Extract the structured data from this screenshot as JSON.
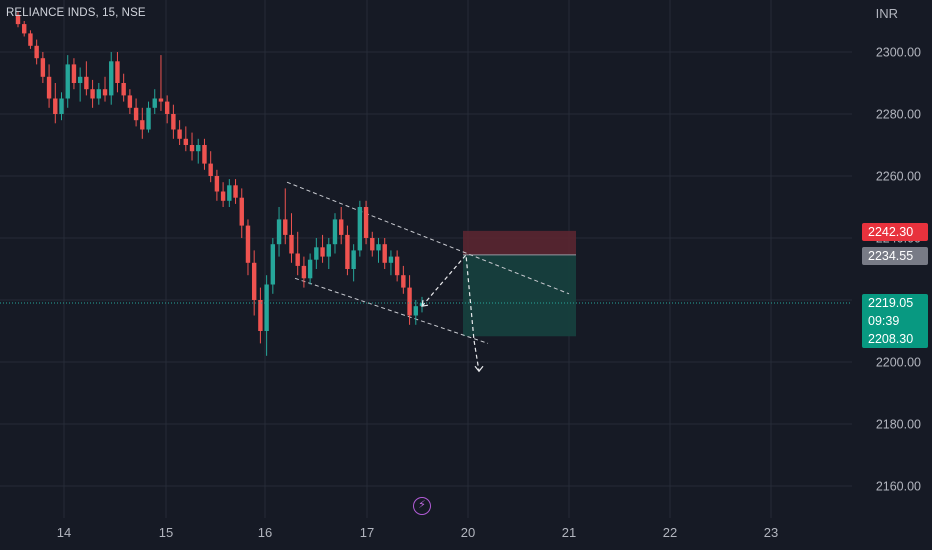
{
  "header": {
    "symbol": "RELIANCE INDS, 15, NSE",
    "currency": "INR"
  },
  "colors": {
    "up": "#26a69a",
    "down": "#ef5350",
    "background": "#161a25",
    "stop_zone": "#5a2631",
    "target_zone": "#163f3d",
    "grid": "#262b38"
  },
  "icons": {
    "bolt": "lightning-icon"
  },
  "price_tags": {
    "stop": "2242.30",
    "entry": "2234.55",
    "last": "2219.05",
    "countdown": "09:39",
    "target": "2208.30"
  },
  "chart_data": {
    "type": "candlestick",
    "title": "",
    "x_ticks": [
      "14",
      "15",
      "16",
      "17",
      "20",
      "21",
      "22",
      "23"
    ],
    "y_ticks": [
      "2300.00",
      "2280.00",
      "2260.00",
      "2240.00",
      "2220.00",
      "2200.00",
      "2180.00",
      "2160.00"
    ],
    "ylim": [
      2150,
      2316
    ],
    "candles": [
      [
        2312,
        2313,
        2308,
        2309
      ],
      [
        2309,
        2310,
        2305,
        2306
      ],
      [
        2306,
        2307,
        2301,
        2302
      ],
      [
        2302,
        2304,
        2296,
        2298
      ],
      [
        2298,
        2300,
        2290,
        2292
      ],
      [
        2292,
        2296,
        2282,
        2285
      ],
      [
        2285,
        2290,
        2277,
        2280
      ],
      [
        2280,
        2287,
        2278,
        2285
      ],
      [
        2285,
        2299,
        2282,
        2296
      ],
      [
        2296,
        2298,
        2288,
        2290
      ],
      [
        2290,
        2295,
        2284,
        2292
      ],
      [
        2292,
        2297,
        2286,
        2288
      ],
      [
        2288,
        2291,
        2282,
        2285
      ],
      [
        2285,
        2290,
        2283,
        2288
      ],
      [
        2288,
        2292,
        2284,
        2286
      ],
      [
        2286,
        2300,
        2283,
        2297
      ],
      [
        2297,
        2300,
        2287,
        2290
      ],
      [
        2290,
        2293,
        2284,
        2286
      ],
      [
        2286,
        2288,
        2280,
        2282
      ],
      [
        2282,
        2285,
        2276,
        2278
      ],
      [
        2278,
        2282,
        2272,
        2275
      ],
      [
        2275,
        2284,
        2274,
        2282
      ],
      [
        2282,
        2288,
        2280,
        2285
      ],
      [
        2285,
        2299,
        2281,
        2284
      ],
      [
        2284,
        2286,
        2277,
        2280
      ],
      [
        2280,
        2283,
        2272,
        2275
      ],
      [
        2275,
        2278,
        2270,
        2272
      ],
      [
        2272,
        2276,
        2268,
        2270
      ],
      [
        2270,
        2274,
        2265,
        2268
      ],
      [
        2268,
        2272,
        2264,
        2270
      ],
      [
        2270,
        2272,
        2262,
        2264
      ],
      [
        2264,
        2268,
        2258,
        2260
      ],
      [
        2260,
        2262,
        2252,
        2255
      ],
      [
        2255,
        2258,
        2250,
        2252
      ],
      [
        2252,
        2259,
        2250,
        2257
      ],
      [
        2257,
        2259,
        2251,
        2253
      ],
      [
        2253,
        2256,
        2240,
        2244
      ],
      [
        2244,
        2246,
        2228,
        2232
      ],
      [
        2232,
        2236,
        2215,
        2220
      ],
      [
        2220,
        2224,
        2206,
        2210
      ],
      [
        2210,
        2228,
        2202,
        2225
      ],
      [
        2225,
        2240,
        2222,
        2238
      ],
      [
        2238,
        2250,
        2234,
        2246
      ],
      [
        2246,
        2256,
        2238,
        2241
      ],
      [
        2241,
        2248,
        2232,
        2235
      ],
      [
        2235,
        2242,
        2228,
        2231
      ],
      [
        2231,
        2234,
        2224,
        2227
      ],
      [
        2227,
        2235,
        2225,
        2233
      ],
      [
        2233,
        2240,
        2230,
        2237
      ],
      [
        2237,
        2241,
        2232,
        2234
      ],
      [
        2234,
        2240,
        2230,
        2238
      ],
      [
        2238,
        2248,
        2235,
        2246
      ],
      [
        2246,
        2250,
        2238,
        2241
      ],
      [
        2241,
        2244,
        2228,
        2230
      ],
      [
        2230,
        2238,
        2226,
        2236
      ],
      [
        2236,
        2252,
        2234,
        2250
      ],
      [
        2250,
        2252,
        2238,
        2240
      ],
      [
        2240,
        2242,
        2234,
        2236
      ],
      [
        2236,
        2240,
        2232,
        2238
      ],
      [
        2238,
        2240,
        2230,
        2232
      ],
      [
        2232,
        2236,
        2228,
        2234
      ],
      [
        2234,
        2236,
        2226,
        2228
      ],
      [
        2228,
        2231,
        2222,
        2224
      ],
      [
        2224,
        2228,
        2212,
        2215
      ],
      [
        2215,
        2220,
        2212,
        2218
      ],
      [
        2218,
        2221,
        2216,
        2219
      ]
    ],
    "annotations": {
      "channel_upper": [
        [
          "16",
          2258
        ],
        [
          "21",
          2222
        ]
      ],
      "channel_lower": [
        [
          "16",
          2227
        ],
        [
          "20",
          2206
        ]
      ],
      "position": {
        "entry": 2234.55,
        "stop": 2242.3,
        "target": 2208.3
      },
      "projection": [
        [
          2218,
          2234.55
        ],
        [
          2234.55,
          2207
        ],
        [
          2207,
          2197
        ]
      ]
    }
  }
}
